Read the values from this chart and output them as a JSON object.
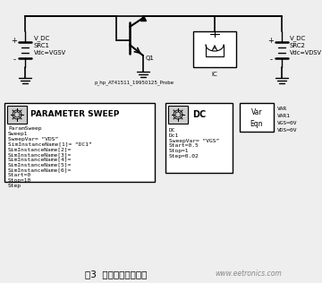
{
  "bg_color": "#f0f0f0",
  "title": "图3  封装模型仿真电路",
  "title_suffix": "www.eetronics.com",
  "param_sweep_text": "ParamSweep\nSweep1\nSweepVar= “VDS”\nSimInstanceName[1]= “DC1”\nSimInstanceName[2]=\nSimInstanceName[3]=\nSimInstanceName[4]=\nSimInstanceName[5]=\nSimInstanceName[6]=\nStart=0\nStop=10\nStep",
  "dc_text": "DC\nDc1\nSweepVar= “VGS”\nStart=0.5\nStop=1\nStep=0.02",
  "var_text": "VAR\nVAR1\nVGS=0V\nVDS=0V"
}
